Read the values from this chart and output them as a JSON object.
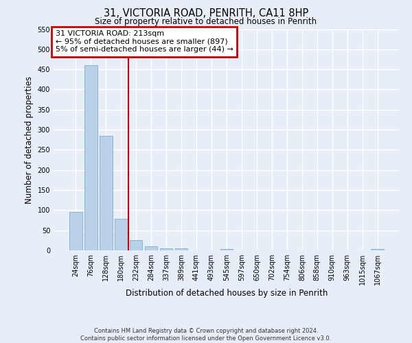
{
  "title": "31, VICTORIA ROAD, PENRITH, CA11 8HP",
  "subtitle": "Size of property relative to detached houses in Penrith",
  "xlabel": "Distribution of detached houses by size in Penrith",
  "ylabel": "Number of detached properties",
  "bar_labels": [
    "24sqm",
    "76sqm",
    "128sqm",
    "180sqm",
    "232sqm",
    "284sqm",
    "337sqm",
    "389sqm",
    "441sqm",
    "493sqm",
    "545sqm",
    "597sqm",
    "650sqm",
    "702sqm",
    "754sqm",
    "806sqm",
    "858sqm",
    "910sqm",
    "963sqm",
    "1015sqm",
    "1067sqm"
  ],
  "bar_values": [
    95,
    460,
    285,
    78,
    25,
    10,
    5,
    5,
    0,
    0,
    4,
    0,
    0,
    0,
    0,
    0,
    0,
    0,
    0,
    0,
    3
  ],
  "bar_color": "#b8d0e8",
  "bar_edge_color": "#7aafd4",
  "vline_x_idx": 4,
  "vline_color": "#cc0000",
  "ylim": [
    0,
    550
  ],
  "yticks": [
    0,
    50,
    100,
    150,
    200,
    250,
    300,
    350,
    400,
    450,
    500,
    550
  ],
  "annotation_title": "31 VICTORIA ROAD: 213sqm",
  "annotation_line1": "← 95% of detached houses are smaller (897)",
  "annotation_line2": "5% of semi-detached houses are larger (44) →",
  "annotation_box_color": "#cc0000",
  "footer_line1": "Contains HM Land Registry data © Crown copyright and database right 2024.",
  "footer_line2": "Contains public sector information licensed under the Open Government Licence v3.0.",
  "bg_color": "#e8eef8",
  "grid_color": "#ffffff"
}
